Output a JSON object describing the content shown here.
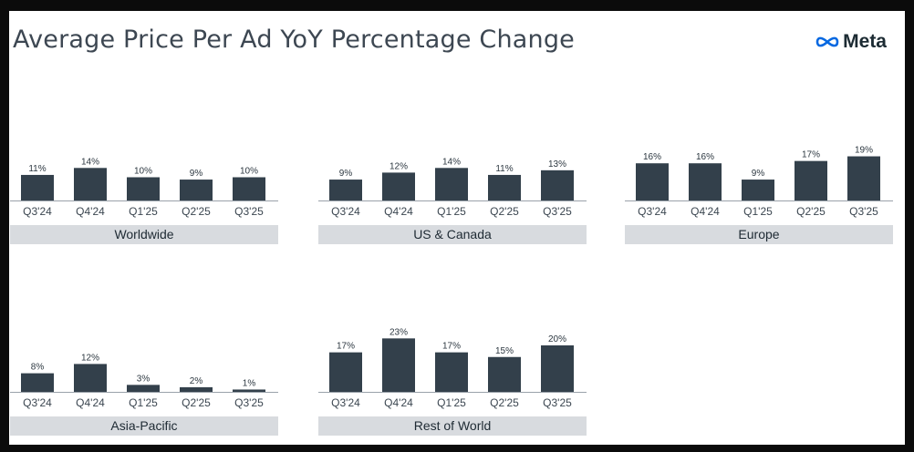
{
  "title": "Average Price Per Ad YoY Percentage Change",
  "logo": {
    "text": "Meta",
    "icon": "meta-infinity-icon"
  },
  "colors": {
    "bar": "#33404b",
    "label_band": "#d8dbdf",
    "title": "#3d4752"
  },
  "chart_data": [
    {
      "type": "bar",
      "title": "Worldwide",
      "categories": [
        "Q3'24",
        "Q4'24",
        "Q1'25",
        "Q2'25",
        "Q3'25"
      ],
      "values": [
        11,
        14,
        10,
        9,
        10
      ],
      "labels": [
        "11%",
        "14%",
        "10%",
        "9%",
        "10%"
      ],
      "unit": "%",
      "ylim": [
        0,
        24
      ]
    },
    {
      "type": "bar",
      "title": "US & Canada",
      "categories": [
        "Q3'24",
        "Q4'24",
        "Q1'25",
        "Q2'25",
        "Q3'25"
      ],
      "values": [
        9,
        12,
        14,
        11,
        13
      ],
      "labels": [
        "9%",
        "12%",
        "14%",
        "11%",
        "13%"
      ],
      "unit": "%",
      "ylim": [
        0,
        24
      ]
    },
    {
      "type": "bar",
      "title": "Europe",
      "categories": [
        "Q3'24",
        "Q4'24",
        "Q1'25",
        "Q2'25",
        "Q3'25"
      ],
      "values": [
        16,
        16,
        9,
        17,
        19
      ],
      "labels": [
        "16%",
        "16%",
        "9%",
        "17%",
        "19%"
      ],
      "unit": "%",
      "ylim": [
        0,
        24
      ]
    },
    {
      "type": "bar",
      "title": "Asia-Pacific",
      "categories": [
        "Q3'24",
        "Q4'24",
        "Q1'25",
        "Q2'25",
        "Q3'25"
      ],
      "values": [
        8,
        12,
        3,
        2,
        1
      ],
      "labels": [
        "8%",
        "12%",
        "3%",
        "2%",
        "1%"
      ],
      "unit": "%",
      "ylim": [
        0,
        24
      ]
    },
    {
      "type": "bar",
      "title": "Rest of World",
      "categories": [
        "Q3'24",
        "Q4'24",
        "Q1'25",
        "Q2'25",
        "Q3'25"
      ],
      "values": [
        17,
        23,
        17,
        15,
        20
      ],
      "labels": [
        "17%",
        "23%",
        "17%",
        "15%",
        "20%"
      ],
      "unit": "%",
      "ylim": [
        0,
        24
      ]
    }
  ]
}
